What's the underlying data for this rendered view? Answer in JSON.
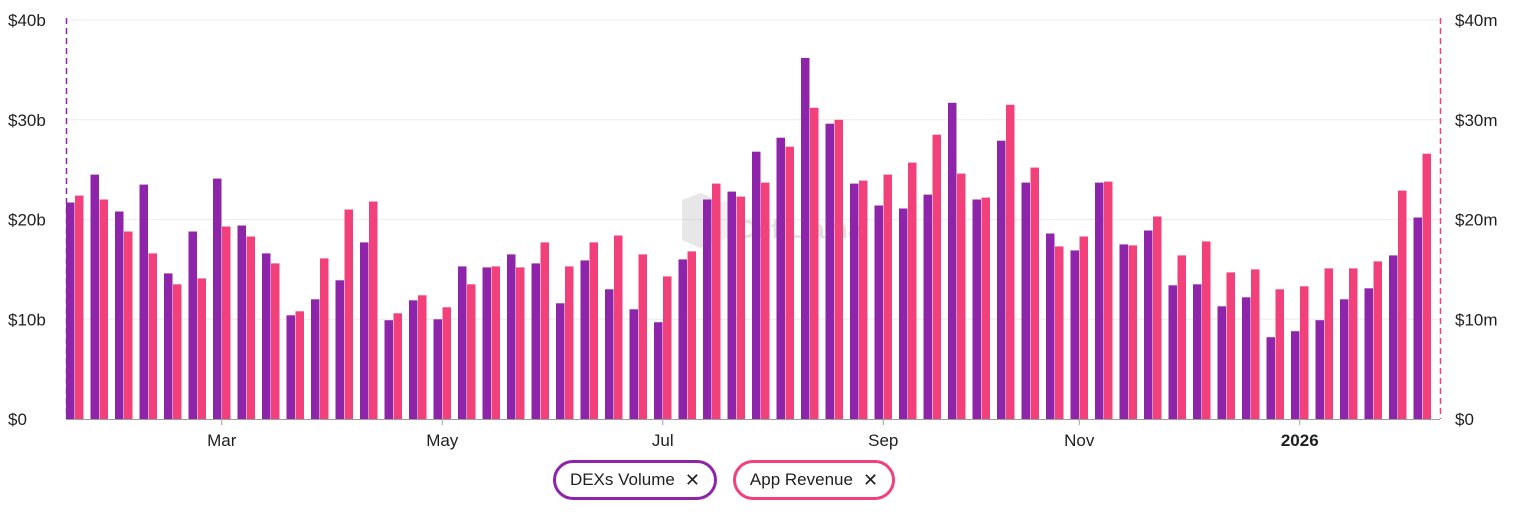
{
  "chart_data": {
    "type": "bar",
    "title": "",
    "left_axis": {
      "ticks": [
        "$0",
        "$10b",
        "$20b",
        "$30b",
        "$40b"
      ],
      "range": [
        0,
        40
      ],
      "unit": "billion USD"
    },
    "right_axis": {
      "ticks": [
        "$0",
        "$10m",
        "$20m",
        "$30m",
        "$40m"
      ],
      "range": [
        0,
        40
      ],
      "unit": "million USD"
    },
    "x_labels": [
      {
        "label": "Mar",
        "index": 6,
        "bold": false
      },
      {
        "label": "May",
        "index": 15,
        "bold": false
      },
      {
        "label": "Jul",
        "index": 24,
        "bold": false
      },
      {
        "label": "Sep",
        "index": 33,
        "bold": false
      },
      {
        "label": "Nov",
        "index": 41,
        "bold": false
      },
      {
        "label": "2026",
        "index": 50,
        "bold": true
      }
    ],
    "watermark": "DefiLlama",
    "series": [
      {
        "name": "DEXs Volume",
        "color": "#8e24aa",
        "axis": "left",
        "values": [
          21.7,
          24.5,
          20.8,
          23.5,
          14.6,
          18.8,
          24.1,
          19.4,
          16.6,
          10.4,
          12.0,
          13.9,
          17.7,
          9.9,
          11.9,
          10.0,
          15.3,
          15.2,
          16.5,
          15.6,
          11.6,
          15.9,
          13.0,
          11.0,
          9.7,
          16.0,
          22.0,
          22.8,
          26.8,
          28.2,
          36.2,
          29.6,
          23.6,
          21.4,
          21.1,
          22.5,
          31.7,
          22.0,
          27.9,
          23.7,
          18.6,
          16.9,
          23.7,
          17.5,
          18.9,
          13.4,
          13.5,
          11.3,
          12.2,
          8.2,
          8.8,
          9.9,
          12.0,
          13.1,
          16.4,
          20.2
        ]
      },
      {
        "name": "App Revenue",
        "color": "#f2407a",
        "axis": "right",
        "values": [
          22.4,
          22.0,
          18.8,
          16.6,
          13.5,
          14.1,
          19.3,
          18.3,
          15.6,
          10.8,
          16.1,
          21.0,
          21.8,
          10.6,
          12.4,
          11.2,
          13.5,
          15.3,
          15.2,
          17.7,
          15.3,
          17.7,
          18.4,
          16.5,
          14.3,
          16.8,
          23.6,
          22.3,
          23.7,
          27.3,
          31.2,
          30.0,
          23.9,
          24.5,
          25.7,
          28.5,
          24.6,
          22.2,
          31.5,
          25.2,
          17.3,
          18.3,
          23.8,
          17.4,
          20.3,
          16.4,
          17.8,
          14.7,
          15.0,
          13.0,
          13.3,
          15.1,
          15.1,
          15.8,
          22.9,
          26.6
        ]
      }
    ],
    "legend": [
      {
        "name": "DEXs Volume",
        "close": "✕"
      },
      {
        "name": "App Revenue",
        "close": "✕"
      }
    ]
  }
}
